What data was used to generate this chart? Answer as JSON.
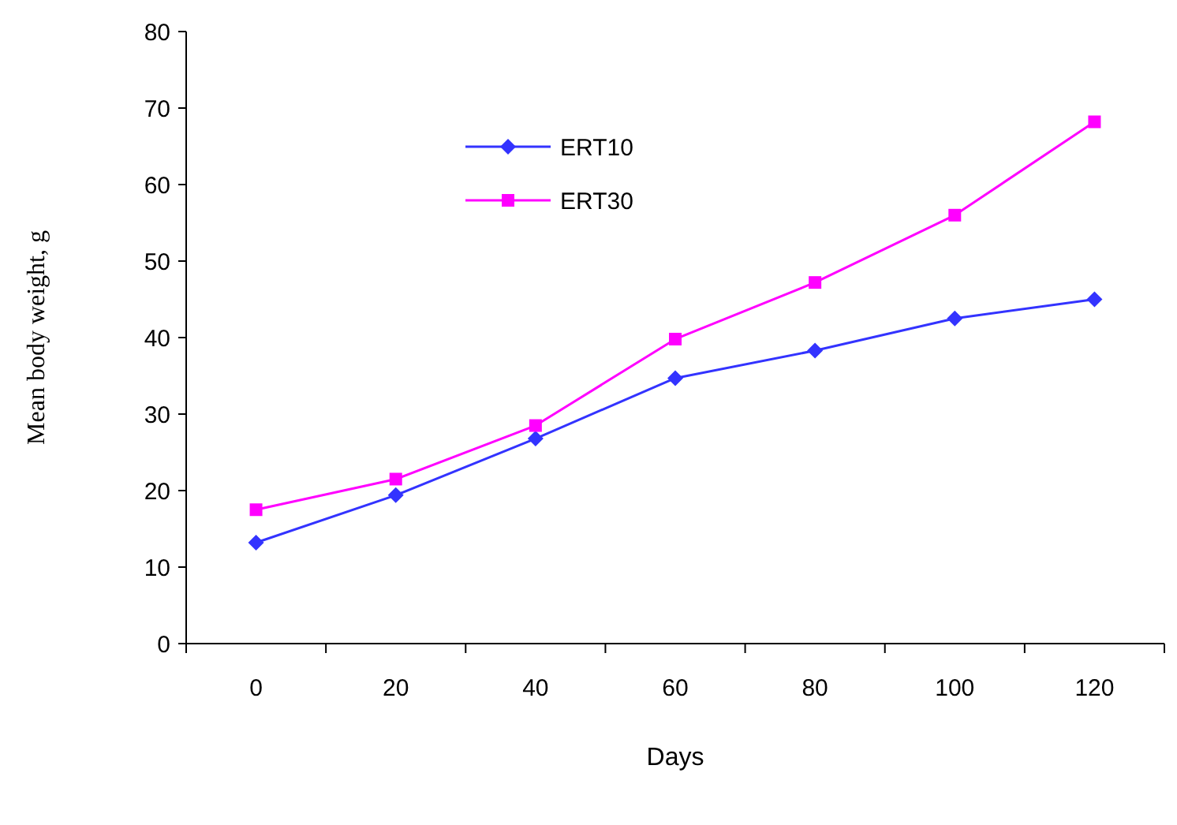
{
  "chart_data": {
    "type": "line",
    "xlabel": "Days",
    "ylabel": "Mean body weight, g",
    "categories": [
      "0",
      "20",
      "40",
      "60",
      "80",
      "100",
      "120"
    ],
    "series": [
      {
        "name": "ERT10",
        "color": "#3333ff",
        "values": [
          13.2,
          19.4,
          26.8,
          34.7,
          38.3,
          42.5,
          45.0
        ],
        "marker": "diamond"
      },
      {
        "name": "ERT30",
        "color": "#ff00ff",
        "values": [
          17.5,
          21.5,
          28.5,
          39.8,
          47.2,
          56.0,
          68.2
        ],
        "marker": "square"
      }
    ],
    "ylim": [
      0,
      80
    ],
    "yticks": [
      0,
      10,
      20,
      30,
      40,
      50,
      60,
      70,
      80
    ],
    "grid": false,
    "legend": "top left",
    "line_style": "solid"
  }
}
